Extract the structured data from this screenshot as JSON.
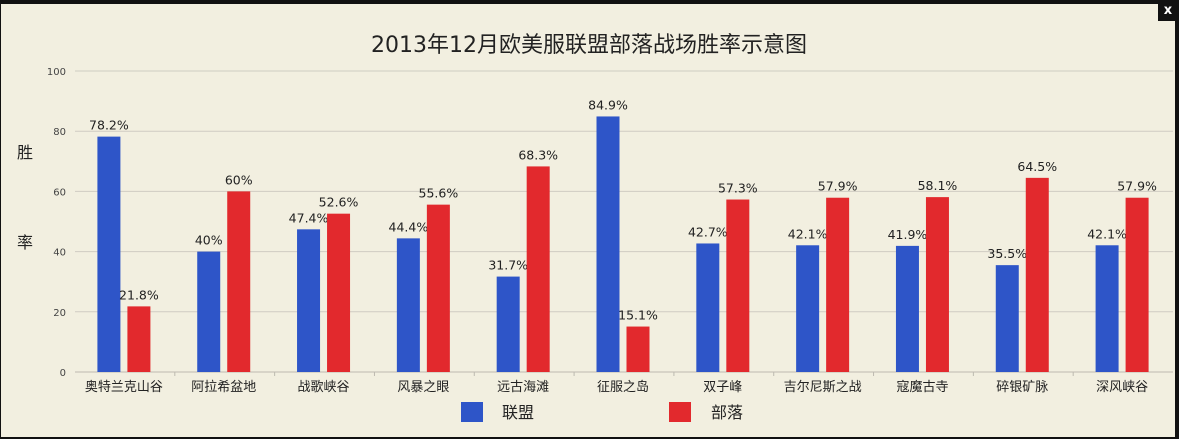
{
  "window": {
    "close_label": "x"
  },
  "chart_data": {
    "type": "bar",
    "title": "2013年12月欧美服联盟部落战场胜率示意图",
    "ylabel": "胜率",
    "xlabel": "",
    "ylim": [
      0,
      100
    ],
    "yticks": [
      0,
      20,
      40,
      60,
      80,
      100
    ],
    "grid": true,
    "legend_position": "bottom",
    "categories": [
      "奥特兰克山谷",
      "阿拉希盆地",
      "战歌峡谷",
      "风暴之眼",
      "远古海滩",
      "征服之岛",
      "双子峰",
      "吉尔尼斯之战",
      "寇魔古寺",
      "碎银矿脉",
      "深风峡谷"
    ],
    "series": [
      {
        "name": "联盟",
        "color": "#2e55c8",
        "values": [
          78.2,
          40,
          47.4,
          44.4,
          31.7,
          84.9,
          42.7,
          42.1,
          41.9,
          35.5,
          42.1
        ],
        "labels": [
          "78.2%",
          "40%",
          "47.4%",
          "44.4%",
          "31.7%",
          "84.9%",
          "42.7%",
          "42.1%",
          "41.9%",
          "35.5%",
          "42.1%"
        ]
      },
      {
        "name": "部落",
        "color": "#e2292d",
        "values": [
          21.8,
          60,
          52.6,
          55.6,
          68.3,
          15.1,
          57.3,
          57.9,
          58.1,
          64.5,
          57.9
        ],
        "labels": [
          "21.8%",
          "60%",
          "52.6%",
          "55.6%",
          "68.3%",
          "15.1%",
          "57.3%",
          "57.9%",
          "58.1%",
          "64.5%",
          "57.9%"
        ]
      }
    ]
  }
}
